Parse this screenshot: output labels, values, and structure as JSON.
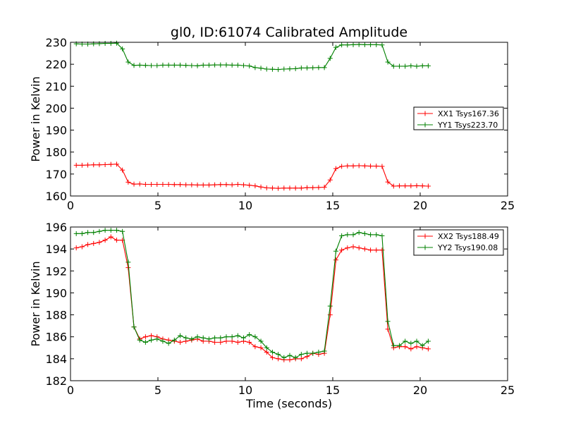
{
  "figure": {
    "title": "gl0, ID:61074 Calibrated Amplitude",
    "xlabel": "Time (seconds)"
  },
  "chart_data": [
    {
      "type": "line",
      "title": "gl0, ID:61074 Calibrated Amplitude",
      "xlabel": "",
      "ylabel": "Power in Kelvin",
      "xlim": [
        0,
        25
      ],
      "ylim": [
        160,
        230
      ],
      "xticks": [
        0,
        5,
        10,
        15,
        20,
        25
      ],
      "yticks": [
        160,
        170,
        180,
        190,
        200,
        210,
        220,
        230
      ],
      "grid": false,
      "legend_position": "center-right",
      "x": [
        0.33,
        0.66,
        0.99,
        1.32,
        1.65,
        1.98,
        2.31,
        2.64,
        2.97,
        3.3,
        3.63,
        3.96,
        4.29,
        4.62,
        4.95,
        5.28,
        5.61,
        5.94,
        6.27,
        6.6,
        6.93,
        7.26,
        7.59,
        7.92,
        8.25,
        8.58,
        8.91,
        9.24,
        9.57,
        9.9,
        10.23,
        10.56,
        10.89,
        11.22,
        11.55,
        11.88,
        12.21,
        12.54,
        12.87,
        13.2,
        13.53,
        13.86,
        14.19,
        14.52,
        14.85,
        15.18,
        15.51,
        15.84,
        16.17,
        16.5,
        16.83,
        17.16,
        17.49,
        17.82,
        18.15,
        18.48,
        18.81,
        19.14,
        19.47,
        19.8,
        20.13,
        20.46
      ],
      "series": [
        {
          "name": "XX1 Tsys167.36",
          "color": "#ff0000",
          "values": [
            174.0,
            174.0,
            174.1,
            174.2,
            174.2,
            174.3,
            174.4,
            174.5,
            171.8,
            166.3,
            165.4,
            165.5,
            165.3,
            165.3,
            165.3,
            165.3,
            165.3,
            165.2,
            165.2,
            165.1,
            165.1,
            165.0,
            165.0,
            165.0,
            165.1,
            165.2,
            165.2,
            165.1,
            165.3,
            165.1,
            164.9,
            164.6,
            164.1,
            163.7,
            163.6,
            163.5,
            163.6,
            163.6,
            163.6,
            163.6,
            163.8,
            163.8,
            163.9,
            164.0,
            167.3,
            172.5,
            173.5,
            173.7,
            173.7,
            173.8,
            173.7,
            173.6,
            173.6,
            173.5,
            166.4,
            164.5,
            164.6,
            164.6,
            164.6,
            164.7,
            164.6,
            164.5
          ]
        },
        {
          "name": "YY1 Tsys223.70",
          "color": "#008000",
          "values": [
            229.3,
            229.2,
            229.2,
            229.3,
            229.4,
            229.5,
            229.5,
            229.6,
            227.0,
            221.0,
            219.5,
            219.6,
            219.5,
            219.4,
            219.4,
            219.6,
            219.6,
            219.6,
            219.6,
            219.5,
            219.4,
            219.3,
            219.6,
            219.6,
            219.7,
            219.7,
            219.7,
            219.6,
            219.6,
            219.4,
            219.2,
            218.5,
            218.2,
            217.8,
            217.7,
            217.6,
            217.8,
            217.9,
            218.0,
            218.3,
            218.3,
            218.4,
            218.5,
            218.5,
            222.7,
            227.7,
            228.8,
            228.8,
            228.9,
            229.0,
            228.9,
            228.9,
            228.9,
            228.8,
            221.0,
            219.1,
            219.1,
            219.1,
            219.3,
            219.1,
            219.3,
            219.3
          ]
        }
      ]
    },
    {
      "type": "line",
      "title": "",
      "xlabel": "Time (seconds)",
      "ylabel": "Power in Kelvin",
      "xlim": [
        0,
        25
      ],
      "ylim": [
        182,
        196
      ],
      "xticks": [
        0,
        5,
        10,
        15,
        20,
        25
      ],
      "yticks": [
        182,
        184,
        186,
        188,
        190,
        192,
        194,
        196
      ],
      "grid": false,
      "legend_position": "top-right",
      "x": [
        0.33,
        0.66,
        0.99,
        1.32,
        1.65,
        1.98,
        2.31,
        2.64,
        2.97,
        3.3,
        3.63,
        3.96,
        4.29,
        4.62,
        4.95,
        5.28,
        5.61,
        5.94,
        6.27,
        6.6,
        6.93,
        7.26,
        7.59,
        7.92,
        8.25,
        8.58,
        8.91,
        9.24,
        9.57,
        9.9,
        10.23,
        10.56,
        10.89,
        11.22,
        11.55,
        11.88,
        12.21,
        12.54,
        12.87,
        13.2,
        13.53,
        13.86,
        14.19,
        14.52,
        14.85,
        15.18,
        15.51,
        15.84,
        16.17,
        16.5,
        16.83,
        17.16,
        17.49,
        17.82,
        18.15,
        18.48,
        18.81,
        19.14,
        19.47,
        19.8,
        20.13,
        20.46
      ],
      "series": [
        {
          "name": "XX2 Tsys188.49",
          "color": "#ff0000",
          "values": [
            194.1,
            194.2,
            194.4,
            194.5,
            194.6,
            194.8,
            195.1,
            194.8,
            194.8,
            192.3,
            186.9,
            185.8,
            186.0,
            186.1,
            186.0,
            185.8,
            185.7,
            185.6,
            185.5,
            185.6,
            185.7,
            185.8,
            185.6,
            185.6,
            185.5,
            185.5,
            185.6,
            185.6,
            185.5,
            185.6,
            185.5,
            185.1,
            185.0,
            184.6,
            184.1,
            184.0,
            183.9,
            183.9,
            184.0,
            184.0,
            184.2,
            184.5,
            184.4,
            184.5,
            188.0,
            193.0,
            193.9,
            194.1,
            194.2,
            194.1,
            194.0,
            193.9,
            193.9,
            193.9,
            186.7,
            185.0,
            185.1,
            185.1,
            184.9,
            185.1,
            185.0,
            184.9
          ]
        },
        {
          "name": "YY2 Tsys190.08",
          "color": "#008000",
          "values": [
            195.4,
            195.4,
            195.5,
            195.5,
            195.6,
            195.7,
            195.7,
            195.7,
            195.6,
            192.8,
            186.9,
            185.7,
            185.5,
            185.7,
            185.8,
            185.6,
            185.4,
            185.7,
            186.1,
            185.9,
            185.8,
            186.0,
            185.9,
            185.8,
            185.9,
            185.9,
            186.0,
            186.0,
            186.1,
            185.9,
            186.2,
            186.0,
            185.6,
            185.0,
            184.6,
            184.4,
            184.1,
            184.3,
            184.1,
            184.4,
            184.5,
            184.5,
            184.6,
            184.7,
            188.8,
            193.8,
            195.2,
            195.3,
            195.3,
            195.5,
            195.4,
            195.3,
            195.3,
            195.2,
            187.4,
            185.2,
            185.2,
            185.6,
            185.4,
            185.6,
            185.2,
            185.6
          ]
        }
      ]
    }
  ]
}
